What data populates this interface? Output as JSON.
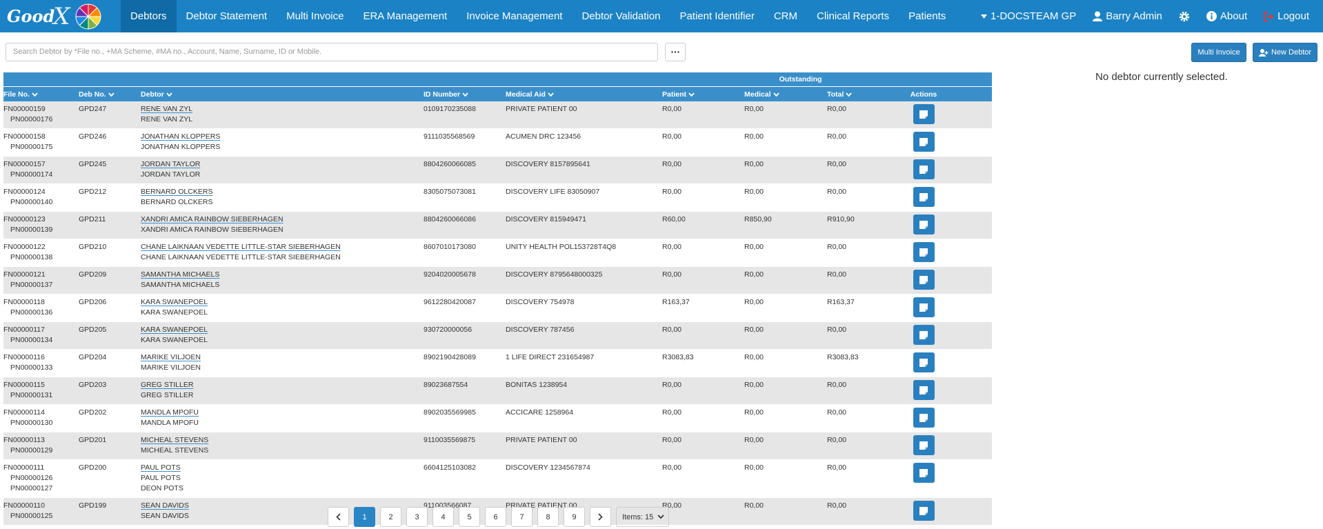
{
  "header": {
    "logo": "Good",
    "logo_x": "X",
    "menu": [
      "Debtors",
      "Debtor Statement",
      "Multi Invoice",
      "ERA Management",
      "Invoice Management",
      "Debtor Validation",
      "Patient Identifier",
      "CRM",
      "Clinical Reports",
      "Patients"
    ],
    "practice": "1-DOCSTEAM GP",
    "user": "Barry Admin",
    "about": "About",
    "logout": "Logout"
  },
  "search_placeholder": "Search Debtor by *File no., +MA Scheme, #MA no., Account, Name, Surname, ID or Mobile.",
  "buttons": {
    "multi_invoice": "Multi Invoice",
    "new_debtor": "New Debtor"
  },
  "no_selection": "No debtor currently selected.",
  "table": {
    "group_header": "Outstanding",
    "columns": [
      "File No.",
      "Deb No.",
      "Debtor",
      "ID Number",
      "Medical Aid",
      "Patient",
      "Medical",
      "Total",
      "Actions"
    ],
    "rows": [
      {
        "file": "FN00000159",
        "deb": "GPD247",
        "debtor": "RENE VAN ZYL",
        "patients": [
          {
            "pn": "PN00000176",
            "name": "RENE VAN ZYL"
          }
        ],
        "id": "0109170235088",
        "aid": "PRIVATE PATIENT 00",
        "patient": "R0,00",
        "medical": "R0,00",
        "total": "R0,00"
      },
      {
        "file": "FN00000158",
        "deb": "GPD246",
        "debtor": "JONATHAN KLOPPERS",
        "patients": [
          {
            "pn": "PN00000175",
            "name": "JONATHAN KLOPPERS"
          }
        ],
        "id": "9111035568569",
        "aid": "ACUMEN DRC 123456",
        "patient": "R0,00",
        "medical": "R0,00",
        "total": "R0,00"
      },
      {
        "file": "FN00000157",
        "deb": "GPD245",
        "debtor": "JORDAN TAYLOR",
        "patients": [
          {
            "pn": "PN00000174",
            "name": "JORDAN TAYLOR"
          }
        ],
        "id": "8804260066085",
        "aid": "DISCOVERY 8157895641",
        "patient": "R0,00",
        "medical": "R0,00",
        "total": "R0,00"
      },
      {
        "file": "FN00000124",
        "deb": "GPD212",
        "debtor": "BERNARD OLCKERS",
        "patients": [
          {
            "pn": "PN00000140",
            "name": "BERNARD OLCKERS"
          }
        ],
        "id": "8305075073081",
        "aid": "DISCOVERY LIFE 83050907",
        "patient": "R0,00",
        "medical": "R0,00",
        "total": "R0,00"
      },
      {
        "file": "FN00000123",
        "deb": "GPD211",
        "debtor": "XANDRI AMICA RAINBOW SIEBERHAGEN",
        "patients": [
          {
            "pn": "PN00000139",
            "name": "XANDRI AMICA RAINBOW SIEBERHAGEN"
          }
        ],
        "id": "8804260066086",
        "aid": "DISCOVERY 815949471",
        "patient": "R60,00",
        "medical": "R850,90",
        "total": "R910,90"
      },
      {
        "file": "FN00000122",
        "deb": "GPD210",
        "debtor": "CHANE LAIKNAAN VEDETTE LITTLE-STAR SIEBERHAGEN",
        "patients": [
          {
            "pn": "PN00000138",
            "name": "CHANE LAIKNAAN VEDETTE LITTLE-STAR SIEBERHAGEN"
          }
        ],
        "id": "8607010173080",
        "aid": "UNITY HEALTH POL153728T4Q8",
        "patient": "R0,00",
        "medical": "R0,00",
        "total": "R0,00"
      },
      {
        "file": "FN00000121",
        "deb": "GPD209",
        "debtor": "SAMANTHA MICHAELS",
        "patients": [
          {
            "pn": "PN00000137",
            "name": "SAMANTHA MICHAELS"
          }
        ],
        "id": "9204020005678",
        "aid": "DISCOVERY 8795648000325",
        "patient": "R0,00",
        "medical": "R0,00",
        "total": "R0,00"
      },
      {
        "file": "FN00000118",
        "deb": "GPD206",
        "debtor": "KARA SWANEPOEL",
        "patients": [
          {
            "pn": "PN00000136",
            "name": "KARA SWANEPOEL"
          }
        ],
        "id": "9612280420087",
        "aid": "DISCOVERY 754978",
        "patient": "R163,37",
        "medical": "R0,00",
        "total": "R163,37"
      },
      {
        "file": "FN00000117",
        "deb": "GPD205",
        "debtor": "KARA SWANEPOEL",
        "patients": [
          {
            "pn": "PN00000134",
            "name": "KARA SWANEPOEL"
          }
        ],
        "id": "930720000056",
        "aid": "DISCOVERY 787456",
        "patient": "R0,00",
        "medical": "R0,00",
        "total": "R0,00"
      },
      {
        "file": "FN00000116",
        "deb": "GPD204",
        "debtor": "MARIKE VILJOEN",
        "patients": [
          {
            "pn": "PN00000133",
            "name": "MARIKE VILJOEN"
          }
        ],
        "id": "8902190428089",
        "aid": "1 LIFE DIRECT 231654987",
        "patient": "R3083,83",
        "medical": "R0,00",
        "total": "R3083,83"
      },
      {
        "file": "FN00000115",
        "deb": "GPD203",
        "debtor": "GREG STILLER",
        "patients": [
          {
            "pn": "PN00000131",
            "name": "GREG STILLER"
          }
        ],
        "id": "89023687554",
        "aid": "BONITAS 1238954",
        "patient": "R0,00",
        "medical": "R0,00",
        "total": "R0,00"
      },
      {
        "file": "FN00000114",
        "deb": "GPD202",
        "debtor": "MANDLA MPOFU",
        "patients": [
          {
            "pn": "PN00000130",
            "name": "MANDLA MPOFU"
          }
        ],
        "id": "8902035569985",
        "aid": "ACCICARE 1258964",
        "patient": "R0,00",
        "medical": "R0,00",
        "total": "R0,00"
      },
      {
        "file": "FN00000113",
        "deb": "GPD201",
        "debtor": "MICHEAL STEVENS",
        "patients": [
          {
            "pn": "PN00000129",
            "name": "MICHEAL STEVENS"
          }
        ],
        "id": "9110035569875",
        "aid": "PRIVATE PATIENT 00",
        "patient": "R0,00",
        "medical": "R0,00",
        "total": "R0,00"
      },
      {
        "file": "FN00000111",
        "deb": "GPD200",
        "debtor": "PAUL POTS",
        "patients": [
          {
            "pn": "PN00000126",
            "name": "PAUL POTS"
          },
          {
            "pn": "PN00000127",
            "name": "DEON POTS"
          }
        ],
        "id": "6604125103082",
        "aid": "DISCOVERY 1234567874",
        "patient": "R0,00",
        "medical": "R0,00",
        "total": "R0,00"
      },
      {
        "file": "FN00000110",
        "deb": "GPD199",
        "debtor": "SEAN DAVIDS",
        "patients": [
          {
            "pn": "PN00000125",
            "name": "SEAN DAVIDS"
          }
        ],
        "id": "911003566087",
        "aid": "PRIVATE PATIENT 00",
        "patient": "R0,00",
        "medical": "R0,00",
        "total": "R0,00"
      }
    ]
  },
  "pagination": {
    "pages": [
      "1",
      "2",
      "3",
      "4",
      "5",
      "6",
      "7",
      "8",
      "9"
    ],
    "current": "1",
    "items": "Items: 15"
  }
}
